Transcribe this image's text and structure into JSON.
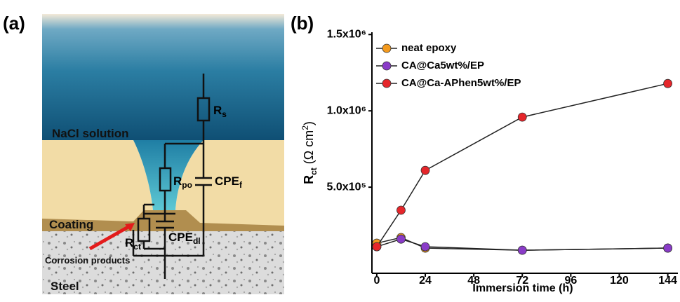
{
  "diagram": {
    "panel_label": "(a)",
    "labels": {
      "nacl": "NaCl solution",
      "coating": "Coating",
      "steel": "Steel",
      "products": "Corrosion products"
    },
    "elements": {
      "rs": {
        "main": "R",
        "sub": "s"
      },
      "rpo": {
        "main": "R",
        "sub": "po"
      },
      "cpef": {
        "main": "CPE",
        "sub": "f"
      },
      "rct": {
        "main": "R",
        "sub": "ct"
      },
      "cpedl": {
        "main": "CPE",
        "sub": "dl"
      }
    }
  },
  "chart_data": {
    "type": "line",
    "panel_label": "(b)",
    "x_label": "Immersion time (h)",
    "y_label": {
      "main": "R",
      "sub": "ct",
      "unit": " (Ω cm",
      "sup": "2",
      "end": ")"
    },
    "x": [
      0,
      12,
      24,
      72,
      144
    ],
    "series": [
      {
        "name": "neat epoxy",
        "color": "#f39a1e",
        "values": [
          133000,
          170000,
          101000,
          87000,
          101000
        ]
      },
      {
        "name": "CA@Ca5wt%/EP",
        "color": "#8a3cc8",
        "values": [
          110000,
          160000,
          110000,
          87000,
          101000
        ]
      },
      {
        "name": "CA@Ca-APhen5wt%/EP",
        "color": "#e5262b",
        "values": [
          110000,
          349000,
          610000,
          959000,
          1179000
        ]
      }
    ],
    "xlim": [
      -2.4,
      149
    ],
    "xticks": [
      0,
      24,
      48,
      72,
      96,
      120,
      144
    ],
    "ylim": [
      -64000,
      1515000
    ],
    "yticks": [
      {
        "value": 500000,
        "label": "5.0x10⁵"
      },
      {
        "value": 1000000,
        "label": "1.0x10⁶"
      },
      {
        "value": 1500000,
        "label": "1.5x10⁶"
      }
    ],
    "legend": "upper-left",
    "grid": false
  }
}
